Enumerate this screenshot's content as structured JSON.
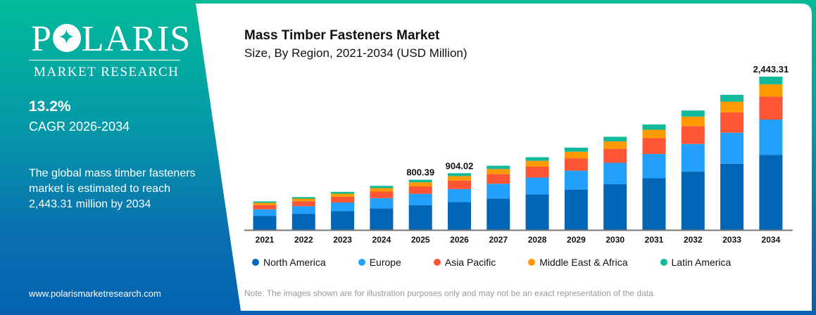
{
  "brand": {
    "name": "POLARIS",
    "sub": "MARKET RESEARCH",
    "url": "www.polarismarketresearch.com"
  },
  "side": {
    "cagr_value": "13.2%",
    "cagr_label": "CAGR 2026-2034",
    "description": "The global mass timber fasteners\nmarket  is estimated to reach\n2,443.31 million by 2034"
  },
  "note": "Note: The images shown are for illustration purposes only and may not be an exact representation of the data.",
  "chart_data": {
    "type": "bar",
    "stacked": true,
    "title": "Mass Timber Fasteners Market",
    "subtitle": "Size, By Region, 2021-2034 (USD Million)",
    "categories": [
      "2021",
      "2022",
      "2023",
      "2024",
      "2025",
      "2026",
      "2027",
      "2028",
      "2029",
      "2030",
      "2031",
      "2032",
      "2033",
      "2034"
    ],
    "series": [
      {
        "name": "North America",
        "color": "#0066b5",
        "values": [
          223,
          257,
          297,
          344,
          392,
          443,
          501,
          568,
          643,
          728,
          824,
          932,
          1055,
          1197
        ]
      },
      {
        "name": "Europe",
        "color": "#22a0fc",
        "values": [
          105,
          121,
          140,
          162,
          184,
          208,
          235,
          267,
          302,
          342,
          387,
          438,
          495,
          562
        ]
      },
      {
        "name": "Asia Pacific",
        "color": "#ff5535",
        "values": [
          68,
          79,
          91,
          105,
          120,
          136,
          153,
          174,
          197,
          223,
          252,
          285,
          323,
          366
        ]
      },
      {
        "name": "Middle East & Africa",
        "color": "#ff9a00",
        "values": [
          36,
          42,
          49,
          56,
          64,
          72,
          82,
          93,
          105,
          119,
          134,
          152,
          172,
          196
        ]
      },
      {
        "name": "Latin America",
        "color": "#10ba9b",
        "values": [
          23,
          25,
          30,
          36,
          40,
          45,
          52,
          57,
          65,
          73,
          84,
          96,
          109,
          122
        ]
      }
    ],
    "data_labels": {
      "2025": "800.39",
      "2026": "904.02",
      "2034": "2,443.31"
    },
    "ylim": [
      0,
      2443.31
    ],
    "grid": false,
    "yaxis_visible": false,
    "legend": "bottom"
  }
}
